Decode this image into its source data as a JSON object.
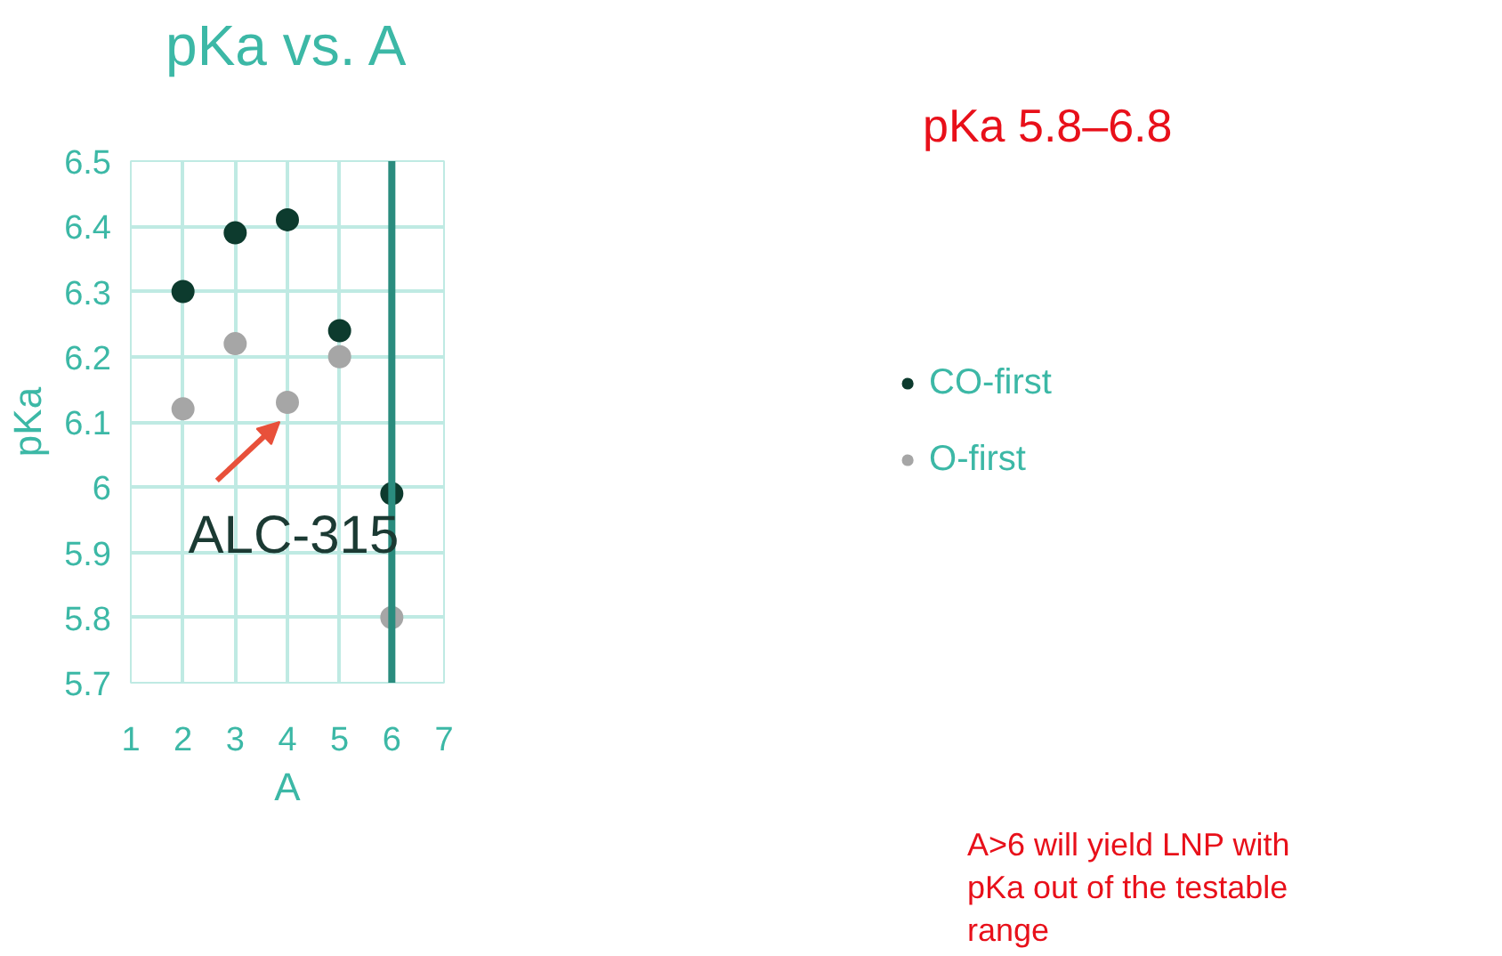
{
  "chart_data": {
    "type": "scatter",
    "title": "pKa vs. A",
    "xlabel": "A",
    "ylabel": "pKa",
    "x": [
      2,
      3,
      4,
      5,
      6
    ],
    "series": [
      {
        "name": "CO-first",
        "color": "#0d3b2e",
        "values": [
          6.3,
          6.39,
          6.41,
          6.24,
          5.99
        ]
      },
      {
        "name": "O-first",
        "color": "#a6a6a6",
        "values": [
          6.12,
          6.22,
          6.13,
          6.2,
          5.8
        ]
      }
    ],
    "xlim": [
      1,
      7
    ],
    "xticks": [
      1,
      2,
      3,
      4,
      5,
      6,
      7
    ],
    "ylim": [
      5.7,
      6.5
    ],
    "yticks": [
      {
        "value": 5.7,
        "label": "5.7"
      },
      {
        "value": 5.8,
        "label": "5.8"
      },
      {
        "value": 5.9,
        "label": "5.9"
      },
      6,
      {
        "value": 6.1,
        "label": "6.1"
      },
      {
        "value": 6.2,
        "label": "6.2"
      },
      {
        "value": 6.3,
        "label": "6.3"
      },
      {
        "value": 6.4,
        "label": "6.4"
      },
      {
        "value": 6.5,
        "label": "6.5"
      }
    ],
    "grid": true,
    "legend": "right",
    "marker": "circle",
    "ref_lines": [
      {
        "axis": "x",
        "value": 6,
        "color": "#2a8c7e"
      }
    ],
    "annotations": [
      {
        "text": "ALC-315",
        "x": 4,
        "y": 6.13
      },
      "pKa 5.8–6.8",
      "A>6 will yield LNP with pKa out of the testable range"
    ]
  }
}
